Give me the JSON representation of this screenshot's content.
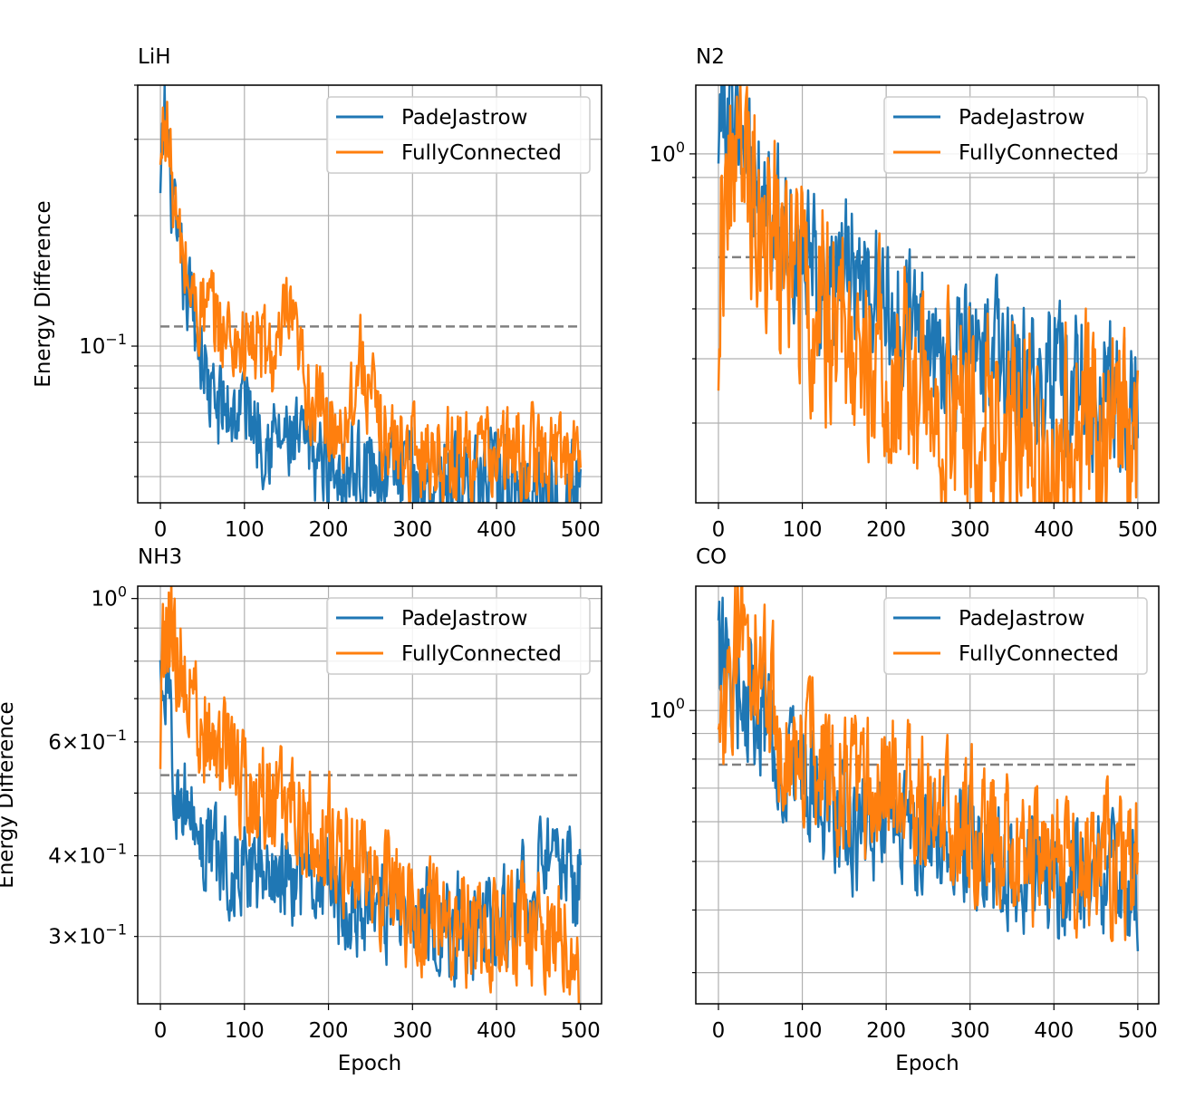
{
  "colors": {
    "pade": "#1f77b4",
    "fully": "#ff7f0e",
    "reference": "#808080",
    "grid": "#b0b0b0"
  },
  "chart_data": [
    {
      "type": "line",
      "title": "LiH",
      "ylabel": "Energy Difference",
      "xlabel": "",
      "xlim": [
        -27,
        525
      ],
      "ylim": [
        0.0435,
        0.4
      ],
      "yscale": "log",
      "xticks": [
        0,
        100,
        200,
        300,
        400,
        500
      ],
      "yticks": [
        {
          "value": 0.1,
          "label": "10",
          "exp": "−1"
        }
      ],
      "grid": true,
      "legend": "upper right",
      "reference_line": 0.111,
      "series": [
        {
          "name": "PadeJastrow",
          "color": "#1f77b4",
          "anchors": [
            [
              0,
              0.21
            ],
            [
              5,
              0.34
            ],
            [
              12,
              0.24
            ],
            [
              20,
              0.16
            ],
            [
              30,
              0.135
            ],
            [
              40,
              0.12
            ],
            [
              50,
              0.095
            ],
            [
              60,
              0.075
            ],
            [
              70,
              0.072
            ],
            [
              90,
              0.07
            ],
            [
              100,
              0.075
            ],
            [
              120,
              0.064
            ],
            [
              150,
              0.06
            ],
            [
              200,
              0.054
            ],
            [
              250,
              0.052
            ],
            [
              300,
              0.05
            ],
            [
              400,
              0.048
            ],
            [
              500,
              0.047
            ]
          ],
          "noise": 0.06
        },
        {
          "name": "FullyConnected",
          "color": "#ff7f0e",
          "anchors": [
            [
              0,
              0.24
            ],
            [
              5,
              0.36
            ],
            [
              12,
              0.26
            ],
            [
              20,
              0.18
            ],
            [
              30,
              0.15
            ],
            [
              40,
              0.125
            ],
            [
              60,
              0.118
            ],
            [
              80,
              0.105
            ],
            [
              100,
              0.1
            ],
            [
              120,
              0.1
            ],
            [
              140,
              0.092
            ],
            [
              150,
              0.118
            ],
            [
              160,
              0.1
            ],
            [
              180,
              0.075
            ],
            [
              200,
              0.066
            ],
            [
              220,
              0.066
            ],
            [
              230,
              0.082
            ],
            [
              240,
              0.095
            ],
            [
              250,
              0.074
            ],
            [
              270,
              0.06
            ],
            [
              300,
              0.057
            ],
            [
              400,
              0.056
            ],
            [
              500,
              0.056
            ]
          ],
          "noise": 0.06
        }
      ]
    },
    {
      "type": "line",
      "title": "N2",
      "ylabel": "",
      "xlabel": "",
      "xlim": [
        -27,
        525
      ],
      "ylim": [
        0.21,
        1.36
      ],
      "yscale": "log",
      "xticks": [
        0,
        100,
        200,
        300,
        400,
        500
      ],
      "yticks": [
        {
          "value": 1.0,
          "label": "10",
          "exp": "0"
        }
      ],
      "grid": true,
      "legend": "upper right",
      "reference_line": 0.63,
      "series": [
        {
          "name": "PadeJastrow",
          "color": "#1f77b4",
          "anchors": [
            [
              0,
              1.25
            ],
            [
              20,
              1.12
            ],
            [
              40,
              0.9
            ],
            [
              60,
              0.8
            ],
            [
              80,
              0.72
            ],
            [
              100,
              0.64
            ],
            [
              120,
              0.58
            ],
            [
              150,
              0.6
            ],
            [
              200,
              0.5
            ],
            [
              250,
              0.44
            ],
            [
              300,
              0.4
            ],
            [
              400,
              0.36
            ],
            [
              500,
              0.33
            ]
          ],
          "noise": 0.08
        },
        {
          "name": "FullyConnected",
          "color": "#ff7f0e",
          "anchors": [
            [
              0,
              0.5
            ],
            [
              3,
              0.76
            ],
            [
              10,
              0.88
            ],
            [
              25,
              0.94
            ],
            [
              40,
              0.85
            ],
            [
              60,
              0.74
            ],
            [
              80,
              0.6
            ],
            [
              100,
              0.53
            ],
            [
              150,
              0.46
            ],
            [
              200,
              0.39
            ],
            [
              250,
              0.34
            ],
            [
              300,
              0.3
            ],
            [
              350,
              0.3
            ],
            [
              400,
              0.29
            ],
            [
              500,
              0.28
            ]
          ],
          "noise": 0.12
        }
      ]
    },
    {
      "type": "line",
      "title": "NH3",
      "ylabel": "Energy Difference",
      "xlabel": "Epoch",
      "xlim": [
        -27,
        525
      ],
      "ylim": [
        0.236,
        1.045
      ],
      "yscale": "log",
      "xticks": [
        0,
        100,
        200,
        300,
        400,
        500
      ],
      "yticks": [
        {
          "value": 1.0,
          "label": "10",
          "exp": "0"
        },
        {
          "value": 0.6,
          "label": "6×10",
          "exp": "−1"
        },
        {
          "value": 0.4,
          "label": "4×10",
          "exp": "−1"
        },
        {
          "value": 0.3,
          "label": "3×10",
          "exp": "−1"
        }
      ],
      "grid": true,
      "legend": "upper right",
      "reference_line": 0.533,
      "series": [
        {
          "name": "PadeJastrow",
          "color": "#1f77b4",
          "anchors": [
            [
              0,
              0.82
            ],
            [
              10,
              0.65
            ],
            [
              20,
              0.52
            ],
            [
              40,
              0.44
            ],
            [
              60,
              0.41
            ],
            [
              100,
              0.38
            ],
            [
              150,
              0.37
            ],
            [
              200,
              0.35
            ],
            [
              250,
              0.34
            ],
            [
              300,
              0.32
            ],
            [
              350,
              0.31
            ],
            [
              400,
              0.31
            ],
            [
              430,
              0.34
            ],
            [
              450,
              0.38
            ],
            [
              500,
              0.36
            ]
          ],
          "noise": 0.045
        },
        {
          "name": "FullyConnected",
          "color": "#ff7f0e",
          "anchors": [
            [
              0,
              0.55
            ],
            [
              3,
              0.8
            ],
            [
              8,
              0.92
            ],
            [
              20,
              0.82
            ],
            [
              40,
              0.68
            ],
            [
              60,
              0.6
            ],
            [
              100,
              0.52
            ],
            [
              150,
              0.46
            ],
            [
              200,
              0.43
            ],
            [
              250,
              0.37
            ],
            [
              300,
              0.33
            ],
            [
              350,
              0.31
            ],
            [
              400,
              0.31
            ],
            [
              450,
              0.31
            ],
            [
              490,
              0.3
            ],
            [
              500,
              0.26
            ]
          ],
          "noise": 0.05
        }
      ]
    },
    {
      "type": "line",
      "title": "CO",
      "ylabel": "",
      "xlabel": "Epoch",
      "xlim": [
        -27,
        525
      ],
      "ylim": [
        0.26,
        1.77
      ],
      "yscale": "log",
      "xticks": [
        0,
        100,
        200,
        300,
        400,
        500
      ],
      "yticks": [
        {
          "value": 1.0,
          "label": "10",
          "exp": "0"
        }
      ],
      "grid": true,
      "legend": "upper right",
      "reference_line": 0.78,
      "series": [
        {
          "name": "PadeJastrow",
          "color": "#1f77b4",
          "anchors": [
            [
              0,
              1.28
            ],
            [
              20,
              1.1
            ],
            [
              50,
              0.97
            ],
            [
              80,
              0.8
            ],
            [
              100,
              0.7
            ],
            [
              150,
              0.6
            ],
            [
              200,
              0.57
            ],
            [
              250,
              0.55
            ],
            [
              300,
              0.52
            ],
            [
              400,
              0.47
            ],
            [
              500,
              0.46
            ]
          ],
          "noise": 0.07
        },
        {
          "name": "FullyConnected",
          "color": "#ff7f0e",
          "anchors": [
            [
              0,
              0.74
            ],
            [
              5,
              0.95
            ],
            [
              15,
              1.1
            ],
            [
              25,
              1.5
            ],
            [
              40,
              1.35
            ],
            [
              60,
              1.1
            ],
            [
              80,
              0.88
            ],
            [
              100,
              0.8
            ],
            [
              150,
              0.74
            ],
            [
              200,
              0.7
            ],
            [
              250,
              0.66
            ],
            [
              300,
              0.6
            ],
            [
              350,
              0.54
            ],
            [
              400,
              0.5
            ],
            [
              500,
              0.49
            ]
          ],
          "noise": 0.08
        }
      ]
    }
  ]
}
